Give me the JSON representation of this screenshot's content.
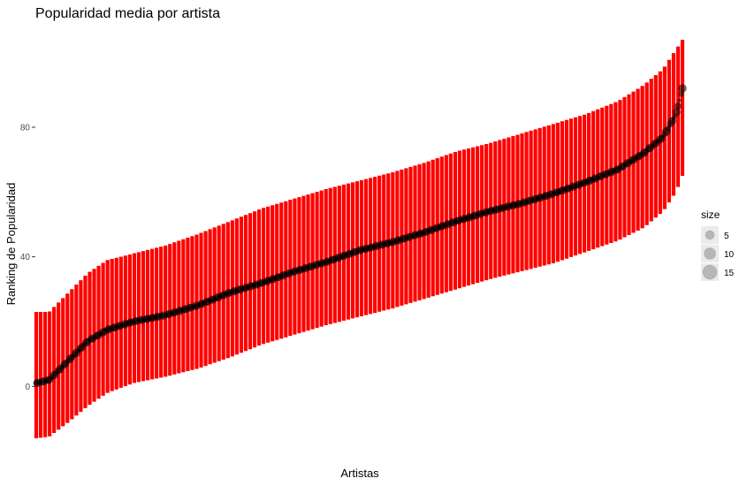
{
  "chart_data": {
    "type": "scatter",
    "title": "Popularidad media por artista",
    "xlabel": "Artistas",
    "ylabel": "Ranking de Popularidad",
    "ylim": [
      -19,
      110
    ],
    "yticks": [
      0,
      40,
      80
    ],
    "x_ticks_shown": false,
    "grid": false,
    "n_artists": 146,
    "error_bar_color": "#ff0000",
    "point_color": "#000000",
    "legend": {
      "title": "size",
      "position": "right",
      "entries": [
        "5",
        "10",
        "15"
      ]
    },
    "mean_curve": [
      {
        "x": 0,
        "y": 1
      },
      {
        "x": 0.02,
        "y": 2
      },
      {
        "x": 0.05,
        "y": 8
      },
      {
        "x": 0.08,
        "y": 14
      },
      {
        "x": 0.11,
        "y": 17.5
      },
      {
        "x": 0.15,
        "y": 20
      },
      {
        "x": 0.2,
        "y": 22
      },
      {
        "x": 0.25,
        "y": 25
      },
      {
        "x": 0.3,
        "y": 29
      },
      {
        "x": 0.35,
        "y": 32
      },
      {
        "x": 0.4,
        "y": 35.5
      },
      {
        "x": 0.45,
        "y": 38.5
      },
      {
        "x": 0.5,
        "y": 42
      },
      {
        "x": 0.55,
        "y": 44.5
      },
      {
        "x": 0.6,
        "y": 47.5
      },
      {
        "x": 0.65,
        "y": 51
      },
      {
        "x": 0.7,
        "y": 54
      },
      {
        "x": 0.75,
        "y": 56.5
      },
      {
        "x": 0.8,
        "y": 59.5
      },
      {
        "x": 0.85,
        "y": 63
      },
      {
        "x": 0.9,
        "y": 67
      },
      {
        "x": 0.94,
        "y": 72
      },
      {
        "x": 0.97,
        "y": 77
      },
      {
        "x": 0.99,
        "y": 84
      },
      {
        "x": 1,
        "y": 92
      }
    ],
    "upper_bound": [
      {
        "x": 0,
        "y": 23
      },
      {
        "x": 0.02,
        "y": 23
      },
      {
        "x": 0.05,
        "y": 29
      },
      {
        "x": 0.08,
        "y": 35
      },
      {
        "x": 0.11,
        "y": 39
      },
      {
        "x": 0.15,
        "y": 41
      },
      {
        "x": 0.2,
        "y": 43.5
      },
      {
        "x": 0.25,
        "y": 47
      },
      {
        "x": 0.3,
        "y": 51
      },
      {
        "x": 0.35,
        "y": 55
      },
      {
        "x": 0.4,
        "y": 58
      },
      {
        "x": 0.45,
        "y": 61
      },
      {
        "x": 0.5,
        "y": 63.5
      },
      {
        "x": 0.55,
        "y": 66
      },
      {
        "x": 0.6,
        "y": 69
      },
      {
        "x": 0.65,
        "y": 72.5
      },
      {
        "x": 0.7,
        "y": 75
      },
      {
        "x": 0.75,
        "y": 78
      },
      {
        "x": 0.8,
        "y": 81
      },
      {
        "x": 0.85,
        "y": 84
      },
      {
        "x": 0.9,
        "y": 88
      },
      {
        "x": 0.94,
        "y": 93
      },
      {
        "x": 0.97,
        "y": 98
      },
      {
        "x": 0.99,
        "y": 104
      },
      {
        "x": 1,
        "y": 107
      }
    ],
    "lower_bound": [
      {
        "x": 0,
        "y": -16
      },
      {
        "x": 0.02,
        "y": -15.5
      },
      {
        "x": 0.05,
        "y": -11
      },
      {
        "x": 0.08,
        "y": -6
      },
      {
        "x": 0.11,
        "y": -2
      },
      {
        "x": 0.15,
        "y": 1
      },
      {
        "x": 0.2,
        "y": 3
      },
      {
        "x": 0.25,
        "y": 5.5
      },
      {
        "x": 0.3,
        "y": 9
      },
      {
        "x": 0.35,
        "y": 13
      },
      {
        "x": 0.4,
        "y": 16
      },
      {
        "x": 0.45,
        "y": 19
      },
      {
        "x": 0.5,
        "y": 21.5
      },
      {
        "x": 0.55,
        "y": 24
      },
      {
        "x": 0.6,
        "y": 27
      },
      {
        "x": 0.65,
        "y": 30
      },
      {
        "x": 0.7,
        "y": 33
      },
      {
        "x": 0.75,
        "y": 35.5
      },
      {
        "x": 0.8,
        "y": 38
      },
      {
        "x": 0.85,
        "y": 41.5
      },
      {
        "x": 0.9,
        "y": 45
      },
      {
        "x": 0.94,
        "y": 49
      },
      {
        "x": 0.97,
        "y": 54
      },
      {
        "x": 0.99,
        "y": 60
      },
      {
        "x": 1,
        "y": 65
      }
    ]
  }
}
